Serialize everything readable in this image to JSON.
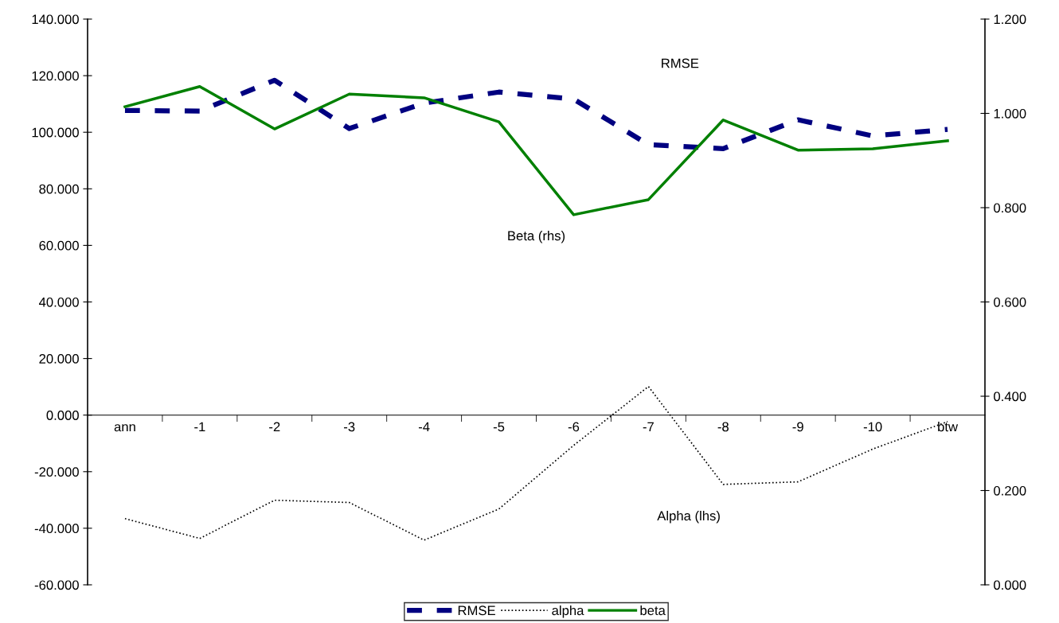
{
  "chart_data": {
    "type": "line",
    "categories": [
      "ann",
      "-1",
      "-2",
      "-3",
      "-4",
      "-5",
      "-6",
      "-7",
      "-8",
      "-9",
      "-10",
      "btw"
    ],
    "series": [
      {
        "name": "RMSE",
        "color": "#000080",
        "line_style": "dashed",
        "values": [
          107.7,
          107.5,
          118.4,
          101.3,
          110.3,
          114.2,
          111.7,
          95.6,
          94.2,
          104.4,
          98.7,
          101.0
        ]
      },
      {
        "name": "alpha",
        "color": "#000000",
        "line_style": "dotted",
        "values": [
          -36.6,
          -43.6,
          -30.1,
          -30.9,
          -44.2,
          -33.2,
          -10.7,
          10.1,
          -24.5,
          -23.6,
          -12.0,
          -2.3
        ]
      },
      {
        "name": "beta",
        "color": "#008000",
        "line_style": "solid",
        "axis": "y2",
        "values": [
          1.014,
          1.057,
          0.967,
          1.041,
          1.033,
          0.982,
          0.785,
          0.817,
          0.986,
          0.922,
          0.925,
          0.942
        ]
      }
    ],
    "ylim": [
      -60,
      140
    ],
    "yticks": [
      {
        "value": -60,
        "label": "-60.000"
      },
      {
        "value": -40,
        "label": "-40.000"
      },
      {
        "value": -20,
        "label": "-20.000"
      },
      {
        "value": 0,
        "label": "0.000"
      },
      {
        "value": 20,
        "label": "20.000"
      },
      {
        "value": 40,
        "label": "40.000"
      },
      {
        "value": 60,
        "label": "60.000"
      },
      {
        "value": 80,
        "label": "80.000"
      },
      {
        "value": 100,
        "label": "100.000"
      },
      {
        "value": 120,
        "label": "120.000"
      },
      {
        "value": 140,
        "label": "140.000"
      }
    ],
    "y2lim": [
      0,
      1.2
    ],
    "y2ticks": [
      {
        "value": 0,
        "label": "0.000"
      },
      {
        "value": 0.2,
        "label": "0.200"
      },
      {
        "value": 0.4,
        "label": "0.400"
      },
      {
        "value": 0.6,
        "label": "0.600"
      },
      {
        "value": 0.8,
        "label": "0.800"
      },
      {
        "value": 1.0,
        "label": "1.000"
      },
      {
        "value": 1.2,
        "label": "1.200"
      }
    ],
    "annotations": [
      "RMSE",
      "Beta (rhs)",
      "Alpha (lhs)"
    ],
    "grid": false,
    "legend": "bottom"
  }
}
